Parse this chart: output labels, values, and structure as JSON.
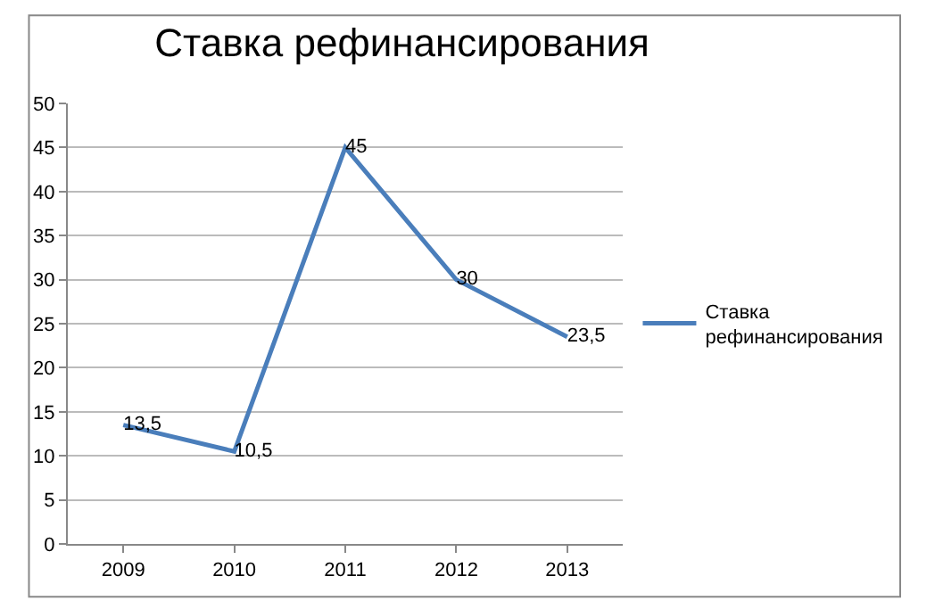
{
  "chart_data": {
    "type": "line",
    "title": "Ставка рефинансирования",
    "categories": [
      "2009",
      "2010",
      "2011",
      "2012",
      "2013"
    ],
    "series": [
      {
        "name": "Ставка рефинансирования",
        "color": "#4a7ebb",
        "values": [
          13.5,
          10.5,
          45,
          30,
          23.5
        ],
        "value_labels": [
          "13,5",
          "10,5",
          "45",
          "30",
          "23,5"
        ]
      }
    ],
    "ylim": [
      0,
      50
    ],
    "yticks": [
      0,
      5,
      10,
      15,
      20,
      25,
      30,
      35,
      40,
      45,
      50
    ],
    "grid": "y",
    "legend": "right",
    "marker": "none",
    "line_style": "solid"
  }
}
